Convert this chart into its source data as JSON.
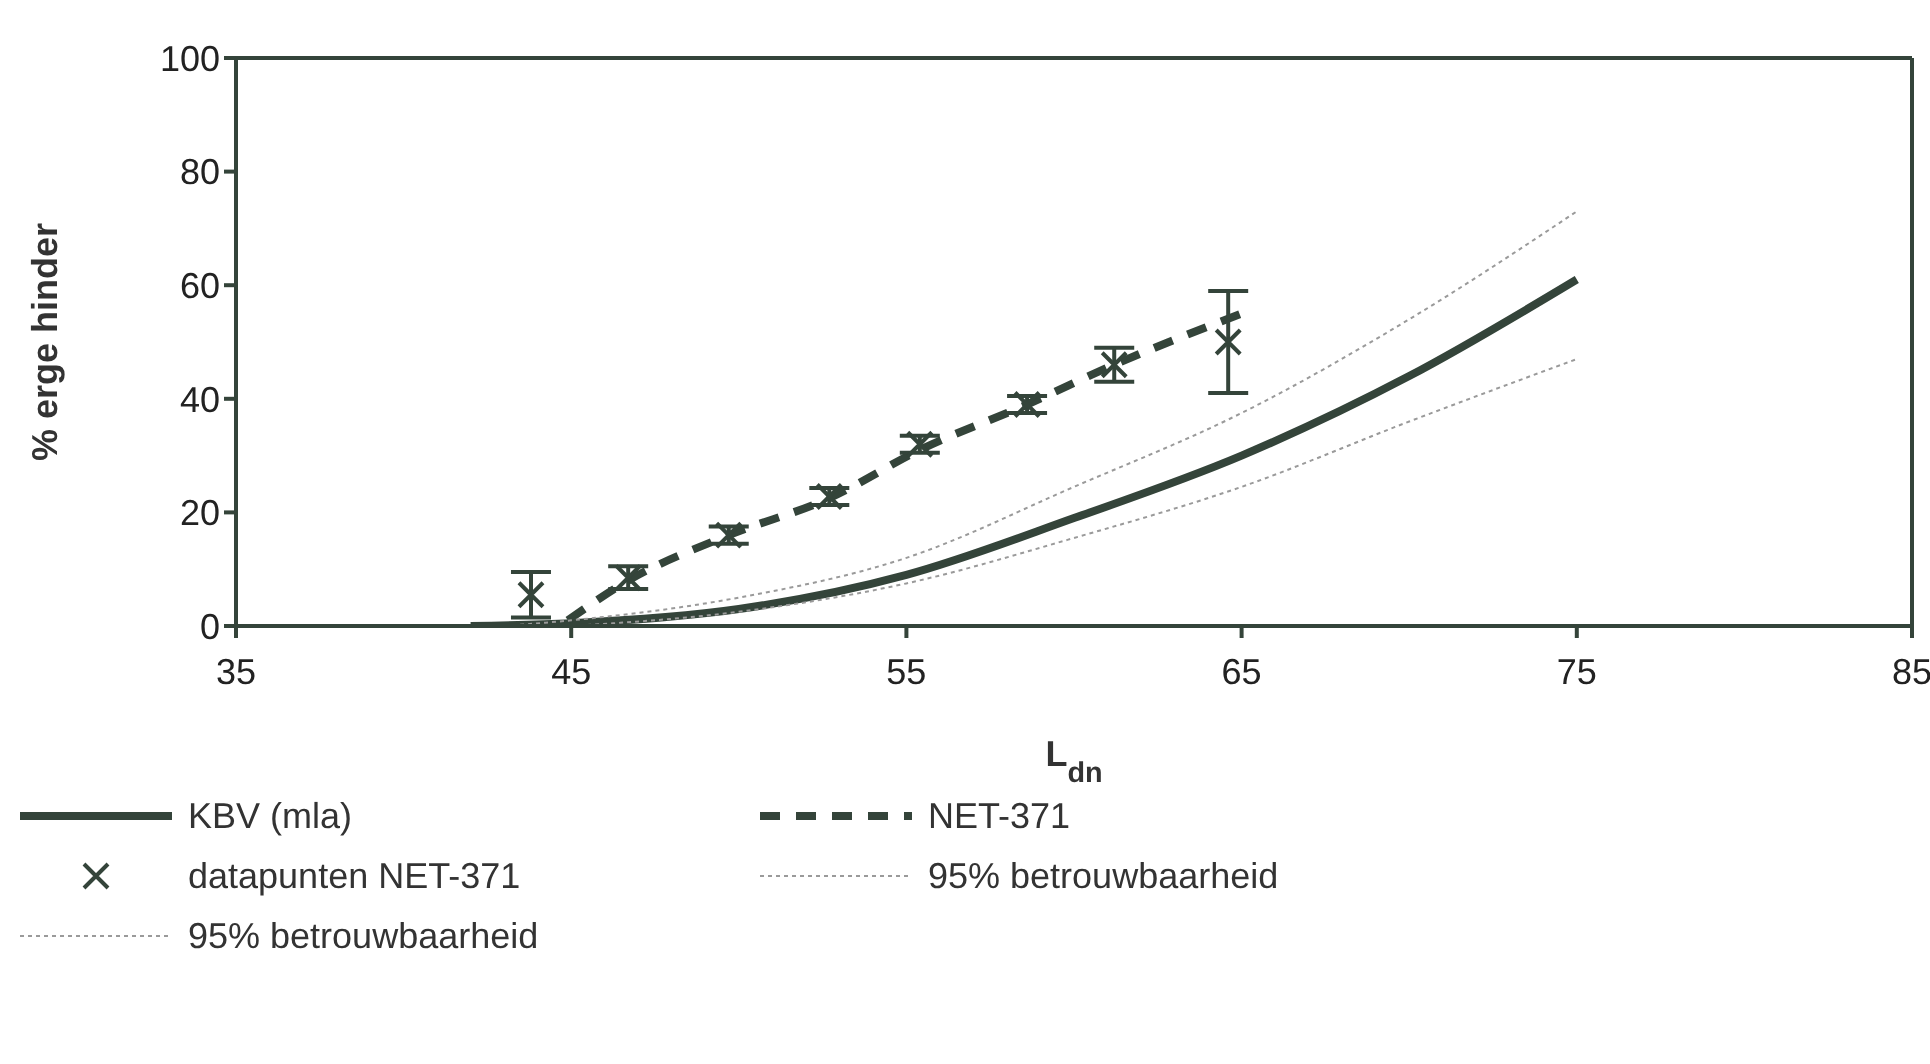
{
  "chart_data": {
    "type": "line",
    "xlabel": "L$_{dn}$",
    "ylabel": "% erge hinder",
    "xlim": [
      35,
      85
    ],
    "xticks": [
      35,
      45,
      55,
      65,
      75,
      85
    ],
    "ylim": [
      0,
      100
    ],
    "yticks": [
      0,
      20,
      40,
      60,
      80,
      100
    ],
    "legend": "bottom",
    "series": [
      {
        "name": "KBV (mla)",
        "color": "#34443a",
        "line_style": "solid",
        "x": [
          42,
          45,
          50,
          55,
          60,
          65,
          70,
          75
        ],
        "values": [
          0,
          0.5,
          3,
          9,
          19,
          30,
          44,
          61
        ]
      },
      {
        "name": "NET-371",
        "color": "#34443a",
        "line_style": "dashed",
        "x": [
          44.9,
          46.7,
          49.7,
          52.7,
          55.4,
          58.6,
          61.2,
          65
        ],
        "values": [
          1,
          8,
          16,
          22.5,
          31,
          39,
          46,
          55
        ]
      },
      {
        "name": "datapunten NET-371",
        "type": "scatter",
        "color": "#34443a",
        "marker": "cross",
        "x": [
          43.8,
          46.7,
          49.7,
          52.7,
          55.4,
          58.6,
          61.2,
          64.6
        ],
        "values": [
          5.5,
          8.5,
          16,
          22.8,
          32,
          39,
          46,
          50
        ],
        "errors": [
          4,
          2,
          1.5,
          1.5,
          1.5,
          1.5,
          3,
          9
        ]
      },
      {
        "name": "95% betrouwbaarheid",
        "color": "#9a9a9a",
        "line_style": "dotted",
        "x": [
          43,
          45,
          50,
          55,
          60,
          65,
          70,
          75
        ],
        "values": [
          0,
          1,
          5,
          12,
          24.5,
          37.5,
          54,
          73
        ]
      },
      {
        "name": "95% betrouwbaarheid",
        "color": "#9a9a9a",
        "line_style": "dotted",
        "x": [
          45,
          50,
          55,
          60,
          65,
          70,
          75
        ],
        "values": [
          0,
          2.5,
          7.5,
          15.5,
          24.5,
          36,
          47
        ]
      }
    ]
  }
}
